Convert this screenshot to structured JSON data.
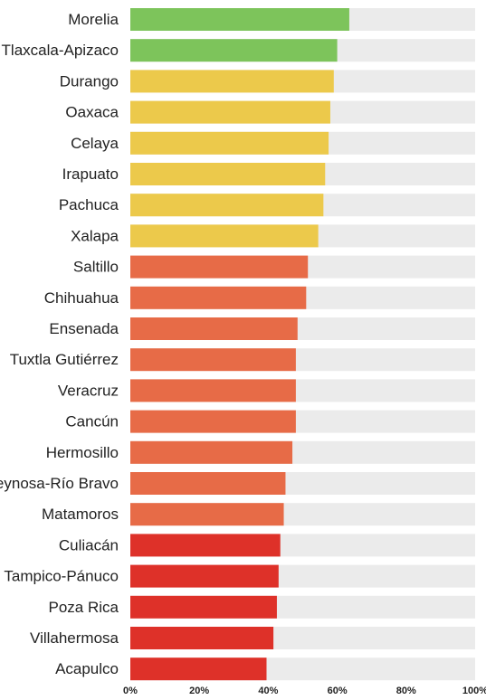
{
  "chart_data": {
    "type": "bar",
    "orientation": "horizontal",
    "title": "",
    "xlabel": "",
    "ylabel": "",
    "xlim": [
      0,
      100
    ],
    "ticks": [
      "0%",
      "20%",
      "40%",
      "60%",
      "80%",
      "100%"
    ],
    "grid": false,
    "legend": "none",
    "track_color": "#ebebeb",
    "categories": [
      "Morelia",
      "Tlaxcala-Apizaco",
      "Durango",
      "Oaxaca",
      "Celaya",
      "Irapuato",
      "Pachuca",
      "Xalapa",
      "Saltillo",
      "Chihuahua",
      "Ensenada",
      "Tuxtla Gutiérrez",
      "Veracruz",
      "Cancún",
      "Hermosillo",
      "Reynosa-Río Bravo",
      "Matamoros",
      "Culiacán",
      "Tampico-Pánuco",
      "Poza Rica",
      "Villahermosa",
      "Acapulco"
    ],
    "values": [
      63.5,
      60,
      59,
      58,
      57.5,
      56.5,
      56,
      54.5,
      51.5,
      51,
      48.5,
      48,
      48,
      48,
      47,
      45,
      44.5,
      43.5,
      43,
      42.5,
      41.5,
      39.5
    ],
    "colors": [
      "#7dc45b",
      "#7dc45b",
      "#ecc94b",
      "#ecc94b",
      "#ecc94b",
      "#ecc94b",
      "#ecc94b",
      "#ecc94b",
      "#e76b47",
      "#e76b47",
      "#e76b47",
      "#e76b47",
      "#e76b47",
      "#e76b47",
      "#e76b47",
      "#e76b47",
      "#e76b47",
      "#de3129",
      "#de3129",
      "#de3129",
      "#de3129",
      "#de3129"
    ]
  }
}
